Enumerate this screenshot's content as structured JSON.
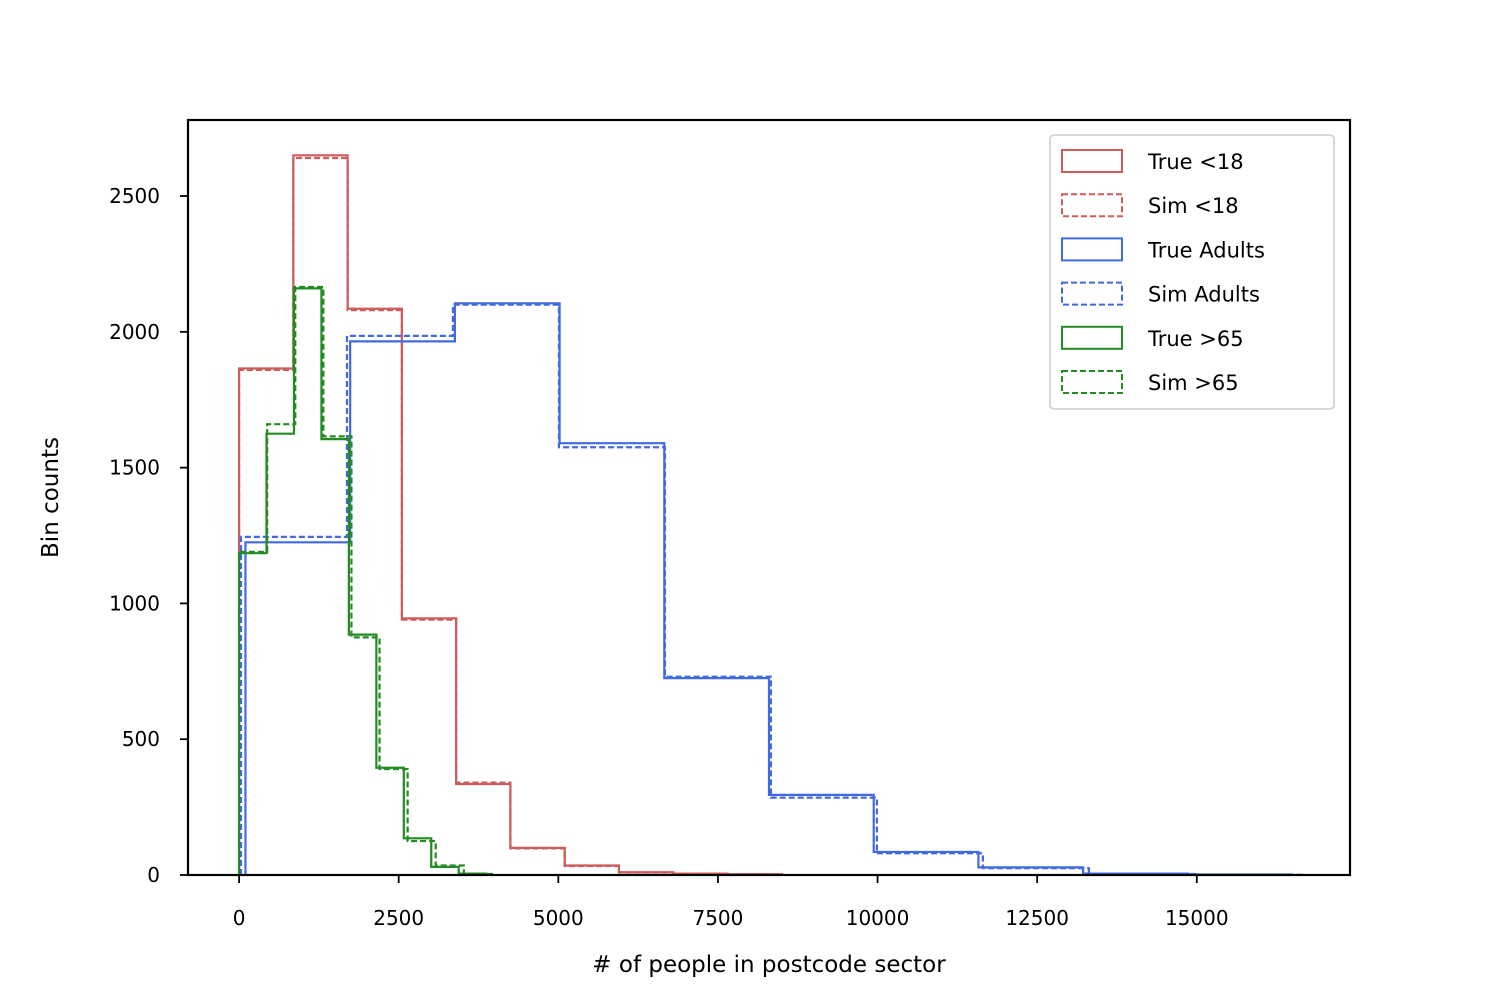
{
  "chart_data": {
    "type": "histogram",
    "title": "",
    "xlabel": "# of people in postcode sector",
    "ylabel": "Bin counts",
    "xlim": [
      -800,
      17400
    ],
    "ylim": [
      0,
      2780
    ],
    "xticks": [
      0,
      2500,
      5000,
      7500,
      10000,
      12500,
      15000
    ],
    "yticks": [
      0,
      500,
      1000,
      1500,
      2000,
      2500
    ],
    "legend_position": "upper right",
    "series": [
      {
        "name": "True <18",
        "color": "#cd5c5c",
        "dashed": false,
        "edges": [
          0,
          850,
          1700,
          2550,
          3400,
          4250,
          5100,
          5950,
          6800,
          7650,
          8500
        ],
        "counts": [
          1865,
          2650,
          2085,
          945,
          335,
          100,
          35,
          10,
          5,
          3
        ]
      },
      {
        "name": "Sim <18",
        "color": "#cd5c5c",
        "dashed": true,
        "edges": [
          0,
          850,
          1700,
          2550,
          3400,
          4250,
          5100,
          5950,
          6800,
          7650,
          8500
        ],
        "counts": [
          1860,
          2640,
          2080,
          940,
          340,
          98,
          33,
          9,
          4,
          2
        ]
      },
      {
        "name": "True Adults",
        "color": "#4169e1",
        "dashed": false,
        "edges": [
          100,
          1740,
          3380,
          5020,
          6660,
          8300,
          9940,
          11580,
          13220,
          14860,
          16500
        ],
        "counts": [
          1225,
          1965,
          2105,
          1590,
          725,
          295,
          85,
          28,
          5,
          2
        ]
      },
      {
        "name": "Sim Adults",
        "color": "#4169e1",
        "dashed": true,
        "edges": [
          30,
          1690,
          3350,
          5010,
          6670,
          8330,
          9990,
          11650,
          13310,
          14970,
          16630
        ],
        "counts": [
          1245,
          1985,
          2100,
          1575,
          730,
          285,
          80,
          25,
          4,
          1
        ]
      },
      {
        "name": "True >65",
        "color": "#228b22",
        "dashed": false,
        "edges": [
          0,
          430,
          860,
          1290,
          1720,
          2150,
          2580,
          3010,
          3440,
          3870
        ],
        "counts": [
          1185,
          1625,
          2160,
          1605,
          885,
          395,
          135,
          30,
          5
        ]
      },
      {
        "name": "Sim >65",
        "color": "#228b22",
        "dashed": true,
        "edges": [
          0,
          440,
          880,
          1320,
          1760,
          2200,
          2640,
          3080,
          3520,
          3960
        ],
        "counts": [
          1190,
          1660,
          2165,
          1615,
          875,
          390,
          125,
          35,
          4
        ]
      }
    ]
  }
}
